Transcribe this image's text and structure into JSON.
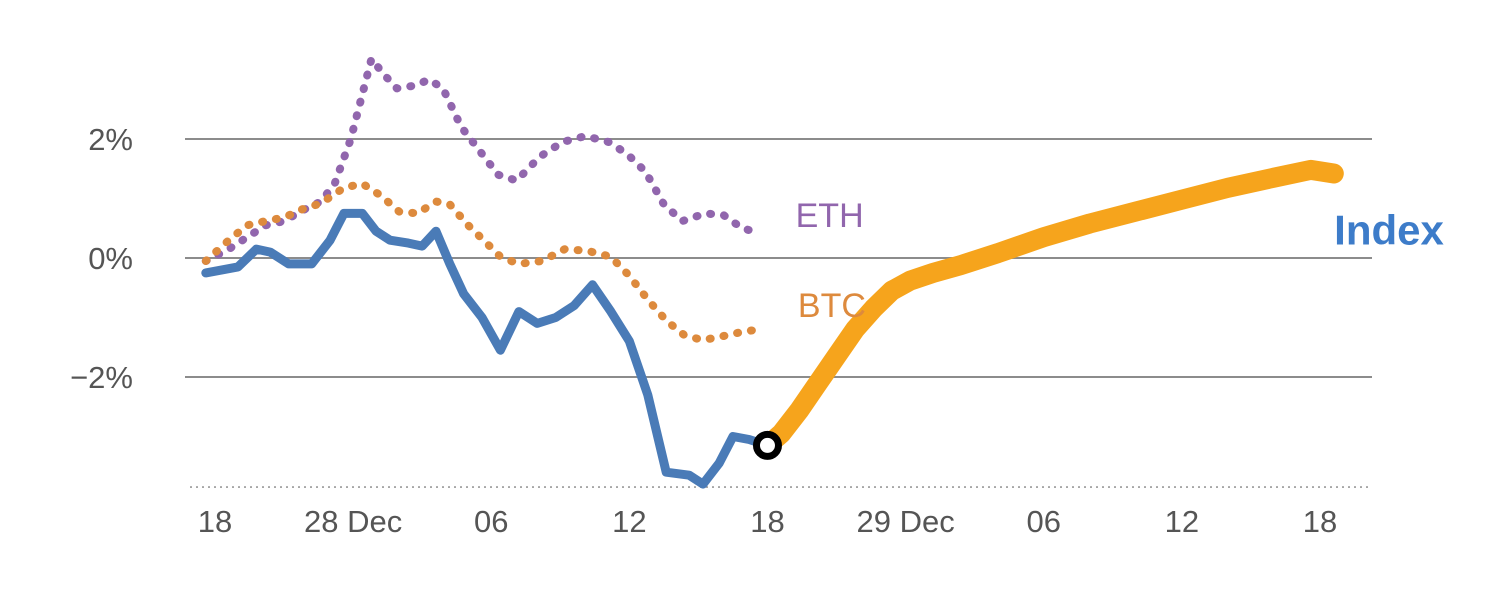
{
  "chart_data": {
    "type": "line",
    "title": "",
    "xlabel": "",
    "ylabel": "",
    "x_unit": "hours after 18:00 on 27 Dec",
    "grid": "horizontal",
    "legend_position": "inline-labels",
    "ylim": [
      -3.85,
      3.6
    ],
    "baseline_y": -3.85,
    "axis_color": "#8c8c8c",
    "tick_text_color": "#555555",
    "xticks": [
      {
        "x": 0,
        "label": "18"
      },
      {
        "x": 6,
        "label": "28 Dec"
      },
      {
        "x": 12,
        "label": "06"
      },
      {
        "x": 18,
        "label": "12"
      },
      {
        "x": 24,
        "label": "18"
      },
      {
        "x": 30,
        "label": "29 Dec"
      },
      {
        "x": 36,
        "label": "06"
      },
      {
        "x": 42,
        "label": "12"
      },
      {
        "x": 48,
        "label": "18"
      }
    ],
    "yticks": [
      {
        "y": 2,
        "label": "2%"
      },
      {
        "y": 0,
        "label": "0%"
      },
      {
        "y": -2,
        "label": "−2%"
      }
    ],
    "series": [
      {
        "id": "eth",
        "name": "ETH",
        "color": "#9166ad",
        "style": "dotted",
        "width": 8,
        "points": [
          [
            -0.4,
            -0.05
          ],
          [
            0.6,
            0.15
          ],
          [
            1.4,
            0.35
          ],
          [
            2.2,
            0.55
          ],
          [
            3.0,
            0.62
          ],
          [
            3.8,
            0.8
          ],
          [
            4.6,
            0.95
          ],
          [
            5.2,
            1.25
          ],
          [
            5.9,
            2.0
          ],
          [
            6.8,
            3.35
          ],
          [
            7.3,
            3.1
          ],
          [
            7.9,
            2.85
          ],
          [
            8.7,
            2.9
          ],
          [
            9.3,
            3.0
          ],
          [
            9.9,
            2.85
          ],
          [
            10.7,
            2.2
          ],
          [
            11.5,
            1.8
          ],
          [
            12.3,
            1.4
          ],
          [
            13.1,
            1.3
          ],
          [
            14.1,
            1.7
          ],
          [
            15.1,
            1.95
          ],
          [
            16.1,
            2.05
          ],
          [
            17.1,
            1.95
          ],
          [
            17.9,
            1.75
          ],
          [
            18.7,
            1.45
          ],
          [
            19.5,
            0.9
          ],
          [
            20.3,
            0.62
          ],
          [
            21.3,
            0.75
          ],
          [
            22.1,
            0.72
          ],
          [
            22.9,
            0.5
          ],
          [
            23.7,
            0.42
          ]
        ]
      },
      {
        "id": "btc",
        "name": "BTC",
        "color": "#dd8a3d",
        "style": "dotted",
        "width": 8,
        "points": [
          [
            -0.4,
            -0.05
          ],
          [
            0.6,
            0.3
          ],
          [
            1.4,
            0.55
          ],
          [
            2.2,
            0.62
          ],
          [
            3.0,
            0.68
          ],
          [
            3.8,
            0.82
          ],
          [
            4.6,
            0.92
          ],
          [
            5.6,
            1.18
          ],
          [
            6.4,
            1.25
          ],
          [
            7.2,
            1.05
          ],
          [
            8.0,
            0.78
          ],
          [
            8.8,
            0.75
          ],
          [
            9.6,
            0.95
          ],
          [
            10.2,
            0.9
          ],
          [
            11.0,
            0.55
          ],
          [
            11.8,
            0.25
          ],
          [
            12.4,
            0.02
          ],
          [
            13.2,
            -0.1
          ],
          [
            14.2,
            -0.05
          ],
          [
            15.2,
            0.15
          ],
          [
            16.2,
            0.12
          ],
          [
            17.2,
            0.02
          ],
          [
            18.0,
            -0.3
          ],
          [
            18.8,
            -0.7
          ],
          [
            19.6,
            -1.05
          ],
          [
            20.4,
            -1.3
          ],
          [
            21.2,
            -1.38
          ],
          [
            22.0,
            -1.32
          ],
          [
            22.8,
            -1.25
          ],
          [
            23.6,
            -1.2
          ]
        ]
      },
      {
        "id": "index-realized",
        "name": "Index",
        "color": "#4a7bb7",
        "style": "solid",
        "width": 9,
        "points": [
          [
            -0.4,
            -0.25
          ],
          [
            0.3,
            -0.2
          ],
          [
            1.0,
            -0.15
          ],
          [
            1.8,
            0.15
          ],
          [
            2.4,
            0.1
          ],
          [
            3.2,
            -0.1
          ],
          [
            4.2,
            -0.1
          ],
          [
            5.0,
            0.3
          ],
          [
            5.6,
            0.75
          ],
          [
            6.4,
            0.75
          ],
          [
            7.0,
            0.45
          ],
          [
            7.6,
            0.3
          ],
          [
            8.4,
            0.25
          ],
          [
            9.0,
            0.2
          ],
          [
            9.6,
            0.45
          ],
          [
            10.2,
            -0.1
          ],
          [
            10.8,
            -0.6
          ],
          [
            11.6,
            -1.0
          ],
          [
            12.4,
            -1.55
          ],
          [
            13.2,
            -0.9
          ],
          [
            14.0,
            -1.1
          ],
          [
            14.8,
            -1.0
          ],
          [
            15.6,
            -0.8
          ],
          [
            16.4,
            -0.45
          ],
          [
            17.2,
            -0.9
          ],
          [
            18.0,
            -1.4
          ],
          [
            18.8,
            -2.3
          ],
          [
            19.6,
            -3.6
          ],
          [
            20.6,
            -3.65
          ],
          [
            21.2,
            -3.8
          ],
          [
            21.9,
            -3.45
          ],
          [
            22.5,
            -3.0
          ],
          [
            23.2,
            -3.05
          ],
          [
            24.0,
            -3.15
          ]
        ]
      },
      {
        "id": "index-projected",
        "name": "Index",
        "color": "#f6a41c",
        "style": "solid",
        "width": 20,
        "points": [
          [
            24.0,
            -3.15
          ],
          [
            24.6,
            -2.95
          ],
          [
            25.4,
            -2.55
          ],
          [
            26.2,
            -2.1
          ],
          [
            27.0,
            -1.65
          ],
          [
            27.8,
            -1.2
          ],
          [
            28.6,
            -0.85
          ],
          [
            29.4,
            -0.55
          ],
          [
            30.2,
            -0.38
          ],
          [
            31.2,
            -0.25
          ],
          [
            32.4,
            -0.12
          ],
          [
            34.0,
            0.08
          ],
          [
            36.0,
            0.35
          ],
          [
            38.0,
            0.58
          ],
          [
            40.0,
            0.78
          ],
          [
            42.0,
            0.98
          ],
          [
            44.0,
            1.18
          ],
          [
            46.0,
            1.35
          ],
          [
            47.6,
            1.48
          ],
          [
            48.6,
            1.42
          ]
        ]
      }
    ],
    "marker": {
      "series": "Index",
      "x": 24,
      "y": -3.15,
      "shape": "ring",
      "ring_color": "#000000",
      "fill_color": "#ffffff",
      "radius": 11,
      "stroke_width": 7
    },
    "annotations": [
      {
        "id": "eth-label",
        "text": "ETH",
        "color": "#9166ad",
        "x": 26.7,
        "y": 0.72,
        "size": 34,
        "bold": false
      },
      {
        "id": "btc-label",
        "text": "BTC",
        "color": "#dd8a3d",
        "x": 26.8,
        "y": -0.79,
        "size": 34,
        "bold": false
      },
      {
        "id": "index-label",
        "text": "Index",
        "color": "#3d7cc9",
        "x": 51.0,
        "y": 0.47,
        "size": 42,
        "bold": true
      }
    ]
  }
}
